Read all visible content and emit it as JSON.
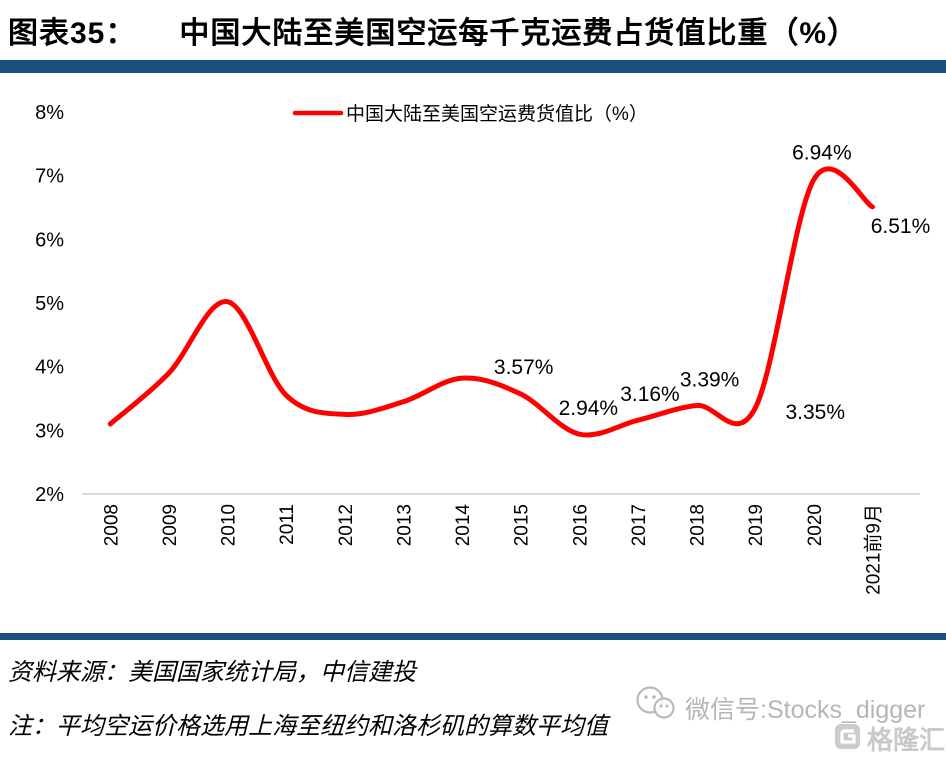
{
  "header": {
    "figure_label": "图表35：",
    "title": "中国大陆至美国空运每千克运费占货值比重（%）"
  },
  "chart_data": {
    "type": "line",
    "title": "中国大陆至美国空运每千克运费占货值比重（%）",
    "legend": "中国大陆至美国空运费货值比（%）",
    "categories": [
      "2008",
      "2009",
      "2010",
      "2011",
      "2012",
      "2013",
      "2014",
      "2015",
      "2016",
      "2017",
      "2018",
      "2019",
      "2020",
      "2021前9月"
    ],
    "values": [
      3.1,
      3.9,
      5.02,
      3.55,
      3.25,
      3.45,
      3.82,
      3.57,
      2.94,
      3.16,
      3.39,
      3.35,
      6.94,
      6.51
    ],
    "point_labels": [
      "",
      "",
      "",
      "",
      "",
      "",
      "",
      "3.57%",
      "2.94%",
      "3.16%",
      "3.39%",
      "3.35%",
      "6.94%",
      "6.51%"
    ],
    "y_ticks": [
      "8%",
      "7%",
      "6%",
      "5%",
      "4%",
      "3%",
      "2%"
    ],
    "ylim": [
      2,
      8
    ],
    "grid": false,
    "legend_position": "top",
    "line_color": "#ff0000",
    "axis_color": "#d9d9d9",
    "label_color": "#000000"
  },
  "footer": {
    "source": "资料来源：美国国家统计局，中信建投",
    "note": "注：平均空运价格选用上海至纽约和洛杉矶的算数平均值"
  },
  "watermark": {
    "wechat": "微信号:Stocks_digger",
    "logo_text": "格隆汇"
  },
  "colors": {
    "accent_bar": "#1b4f7e"
  }
}
